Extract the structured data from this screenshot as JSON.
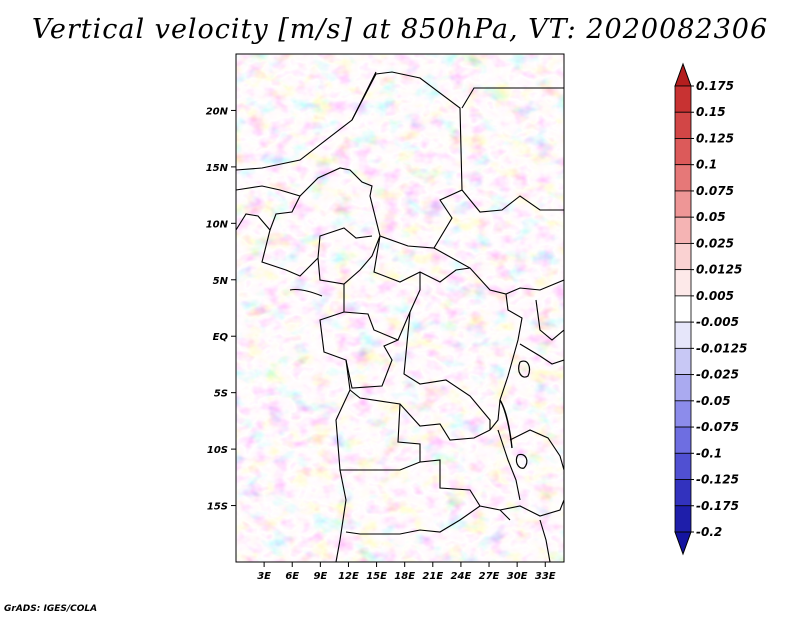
{
  "title": "Vertical velocity [m/s] at 850hPa, VT: 2020082306",
  "credit": "GrADS: IGES/COLA",
  "map": {
    "lon_labels": [
      "3E",
      "6E",
      "9E",
      "12E",
      "15E",
      "18E",
      "21E",
      "24E",
      "27E",
      "30E",
      "33E"
    ],
    "lat_labels": [
      "20N",
      "15N",
      "10N",
      "5N",
      "EQ",
      "5S",
      "10S",
      "15S"
    ],
    "lon_range": [
      0,
      35
    ],
    "lat_range": [
      -20,
      25
    ],
    "variable": "vertical velocity",
    "level": "850hPa",
    "valid_time": "2020082306"
  },
  "colorbar": {
    "labels": [
      "0.175",
      "0.15",
      "0.125",
      "0.1",
      "0.075",
      "0.05",
      "0.025",
      "0.0125",
      "0.005",
      "-0.005",
      "-0.0125",
      "-0.025",
      "-0.05",
      "-0.075",
      "-0.1",
      "-0.125",
      "-0.175",
      "-0.2"
    ],
    "colors": [
      "#b41e1e",
      "#c83232",
      "#d24646",
      "#dc5a5a",
      "#e67878",
      "#ee9696",
      "#f5b4b4",
      "#fad2d2",
      "#fde9e9",
      "#ffffff",
      "#e6e6fa",
      "#c8c8f5",
      "#aaaaf0",
      "#8c8ceb",
      "#6e6ee1",
      "#5050d2",
      "#3232be",
      "#1e1eaa",
      "#1414a0"
    ]
  }
}
